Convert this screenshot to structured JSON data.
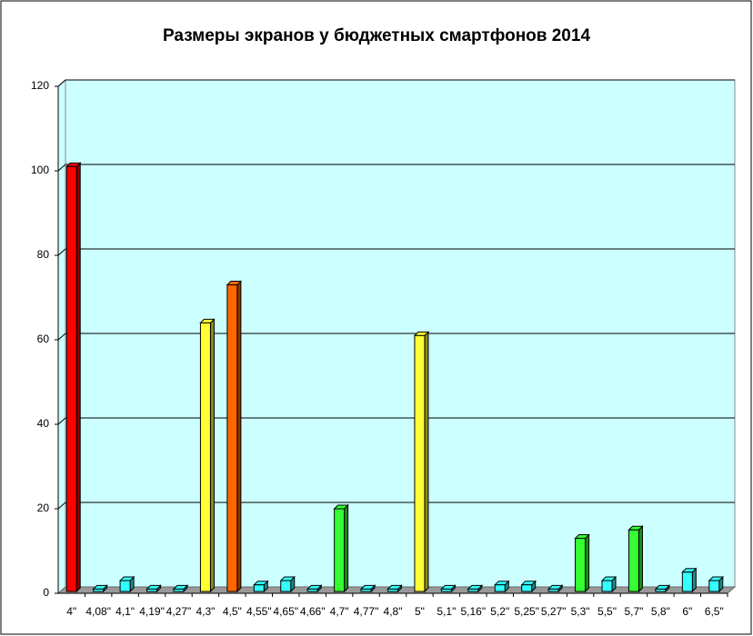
{
  "chart_data": {
    "type": "bar",
    "title": "Размеры экранов у бюджетных смартфонов 2014",
    "categories": [
      "4\"",
      "4,08\"",
      "4,1\"",
      "4,19\"",
      "4,27\"",
      "4,3\"",
      "4,5\"",
      "4,55\"",
      "4,65\"",
      "4,66\"",
      "4,7\"",
      "4,77\"",
      "4,8\"",
      "5\"",
      "5,1\"",
      "5,16\"",
      "5,2\"",
      "5,25\"",
      "5,27\"",
      "5,3\"",
      "5,5\"",
      "5,7\"",
      "5,8\"",
      "6\"",
      "6,5\""
    ],
    "values": [
      101,
      1,
      3,
      1,
      1,
      64,
      73,
      2,
      3,
      1,
      20,
      1,
      1,
      61,
      1,
      1,
      2,
      2,
      1,
      13,
      3,
      15,
      1,
      5,
      3
    ],
    "colors": [
      "#ff0000",
      "#33ffff",
      "#33ffff",
      "#33ffff",
      "#33ffff",
      "#ffff33",
      "#ff6600",
      "#33ffff",
      "#33ffff",
      "#33ffff",
      "#33ff33",
      "#33ffff",
      "#33ffff",
      "#ffff33",
      "#33ffff",
      "#33ffff",
      "#33ffff",
      "#33ffff",
      "#33ffff",
      "#33ff33",
      "#33ffff",
      "#33ff33",
      "#33ffff",
      "#33ffff",
      "#33ffff"
    ],
    "ylim": [
      0,
      120
    ],
    "yticks": [
      0,
      20,
      40,
      60,
      80,
      100,
      120
    ],
    "grid": true
  }
}
